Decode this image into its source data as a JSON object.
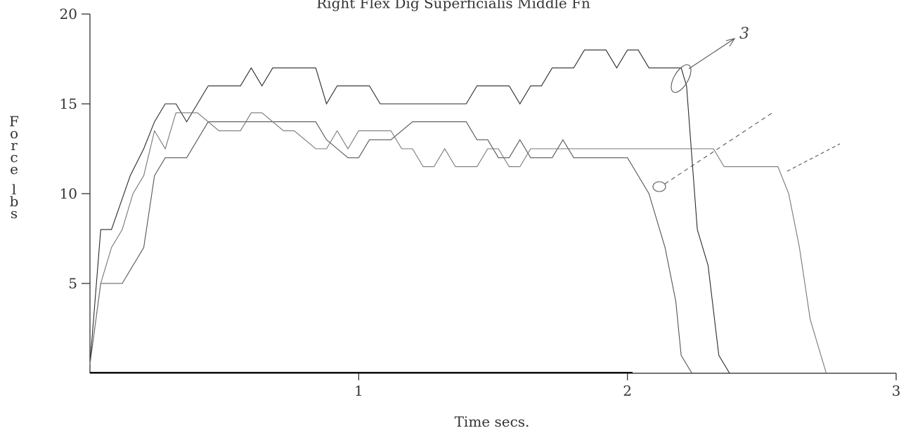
{
  "chart_data": {
    "type": "line",
    "title": "Right    Flex Dig Superficialis Middle Fn",
    "xlabel": "Time  secs.",
    "ylabel": "Force lbs",
    "xlim": [
      0,
      3
    ],
    "ylim": [
      0,
      20
    ],
    "x_ticks": [
      1,
      2,
      3
    ],
    "y_ticks": [
      5,
      10,
      15,
      20
    ],
    "grid": false,
    "legend": "none",
    "series": [
      {
        "color": "#2a2a2a",
        "points": [
          [
            0,
            0.5
          ],
          [
            0.04,
            8
          ],
          [
            0.08,
            8
          ],
          [
            0.15,
            11
          ],
          [
            0.2,
            12.5
          ],
          [
            0.24,
            14
          ],
          [
            0.28,
            15
          ],
          [
            0.32,
            15
          ],
          [
            0.36,
            14
          ],
          [
            0.4,
            15
          ],
          [
            0.44,
            16
          ],
          [
            0.48,
            16
          ],
          [
            0.52,
            16
          ],
          [
            0.56,
            16
          ],
          [
            0.6,
            17
          ],
          [
            0.64,
            16
          ],
          [
            0.68,
            17
          ],
          [
            0.72,
            17
          ],
          [
            0.76,
            17
          ],
          [
            0.8,
            17
          ],
          [
            0.84,
            17
          ],
          [
            0.88,
            15
          ],
          [
            0.92,
            16
          ],
          [
            0.96,
            16
          ],
          [
            1,
            16
          ],
          [
            1.04,
            16
          ],
          [
            1.08,
            15
          ],
          [
            1.12,
            15
          ],
          [
            1.2,
            15
          ],
          [
            1.3,
            15
          ],
          [
            1.4,
            15
          ],
          [
            1.44,
            16
          ],
          [
            1.48,
            16
          ],
          [
            1.52,
            16
          ],
          [
            1.56,
            16
          ],
          [
            1.6,
            15
          ],
          [
            1.64,
            16
          ],
          [
            1.68,
            16
          ],
          [
            1.72,
            17
          ],
          [
            1.76,
            17
          ],
          [
            1.8,
            17
          ],
          [
            1.84,
            18
          ],
          [
            1.88,
            18
          ],
          [
            1.92,
            18
          ],
          [
            1.96,
            17
          ],
          [
            2,
            18
          ],
          [
            2.04,
            18
          ],
          [
            2.08,
            17
          ],
          [
            2.12,
            17
          ],
          [
            2.16,
            17
          ],
          [
            2.2,
            17
          ],
          [
            2.22,
            16
          ],
          [
            2.24,
            12
          ],
          [
            2.26,
            8
          ],
          [
            2.3,
            6
          ],
          [
            2.34,
            1
          ],
          [
            2.38,
            0
          ]
        ]
      },
      {
        "color": "#555555",
        "points": [
          [
            0,
            0.5
          ],
          [
            0.04,
            5
          ],
          [
            0.08,
            5
          ],
          [
            0.12,
            5
          ],
          [
            0.16,
            6
          ],
          [
            0.2,
            7
          ],
          [
            0.24,
            11
          ],
          [
            0.28,
            12
          ],
          [
            0.32,
            12
          ],
          [
            0.36,
            12
          ],
          [
            0.4,
            13
          ],
          [
            0.44,
            14
          ],
          [
            0.48,
            14
          ],
          [
            0.52,
            14
          ],
          [
            0.56,
            14
          ],
          [
            0.6,
            14
          ],
          [
            0.64,
            14
          ],
          [
            0.68,
            14
          ],
          [
            0.72,
            14
          ],
          [
            0.76,
            14
          ],
          [
            0.8,
            14
          ],
          [
            0.84,
            14
          ],
          [
            0.88,
            13
          ],
          [
            0.92,
            12.5
          ],
          [
            0.96,
            12
          ],
          [
            1,
            12
          ],
          [
            1.04,
            13
          ],
          [
            1.08,
            13
          ],
          [
            1.12,
            13
          ],
          [
            1.16,
            13.5
          ],
          [
            1.2,
            14
          ],
          [
            1.24,
            14
          ],
          [
            1.28,
            14
          ],
          [
            1.32,
            14
          ],
          [
            1.36,
            14
          ],
          [
            1.4,
            14
          ],
          [
            1.44,
            13
          ],
          [
            1.48,
            13
          ],
          [
            1.52,
            12
          ],
          [
            1.56,
            12
          ],
          [
            1.6,
            13
          ],
          [
            1.64,
            12
          ],
          [
            1.68,
            12
          ],
          [
            1.72,
            12
          ],
          [
            1.76,
            13
          ],
          [
            1.8,
            12
          ],
          [
            1.84,
            12
          ],
          [
            1.88,
            12
          ],
          [
            1.92,
            12
          ],
          [
            1.96,
            12
          ],
          [
            2,
            12
          ],
          [
            2.04,
            11
          ],
          [
            2.08,
            10
          ],
          [
            2.1,
            9
          ],
          [
            2.14,
            7
          ],
          [
            2.18,
            4
          ],
          [
            2.2,
            1
          ],
          [
            2.24,
            0
          ]
        ]
      },
      {
        "color": "#777777",
        "points": [
          [
            0,
            0.5
          ],
          [
            0.04,
            5
          ],
          [
            0.08,
            7
          ],
          [
            0.12,
            8
          ],
          [
            0.16,
            10
          ],
          [
            0.2,
            11
          ],
          [
            0.24,
            13.5
          ],
          [
            0.28,
            12.5
          ],
          [
            0.32,
            14.5
          ],
          [
            0.36,
            14.5
          ],
          [
            0.4,
            14.5
          ],
          [
            0.44,
            14
          ],
          [
            0.48,
            13.5
          ],
          [
            0.52,
            13.5
          ],
          [
            0.56,
            13.5
          ],
          [
            0.6,
            14.5
          ],
          [
            0.64,
            14.5
          ],
          [
            0.68,
            14
          ],
          [
            0.72,
            13.5
          ],
          [
            0.76,
            13.5
          ],
          [
            0.8,
            13
          ],
          [
            0.84,
            12.5
          ],
          [
            0.88,
            12.5
          ],
          [
            0.92,
            13.5
          ],
          [
            0.96,
            12.5
          ],
          [
            1,
            13.5
          ],
          [
            1.04,
            13.5
          ],
          [
            1.08,
            13.5
          ],
          [
            1.12,
            13.5
          ],
          [
            1.16,
            12.5
          ],
          [
            1.2,
            12.5
          ],
          [
            1.24,
            11.5
          ],
          [
            1.28,
            11.5
          ],
          [
            1.32,
            12.5
          ],
          [
            1.36,
            11.5
          ],
          [
            1.4,
            11.5
          ],
          [
            1.44,
            11.5
          ],
          [
            1.48,
            12.5
          ],
          [
            1.52,
            12.5
          ],
          [
            1.56,
            11.5
          ],
          [
            1.6,
            11.5
          ],
          [
            1.64,
            12.5
          ],
          [
            1.68,
            12.5
          ],
          [
            1.72,
            12.5
          ],
          [
            1.76,
            12.5
          ],
          [
            1.8,
            12.5
          ],
          [
            1.84,
            12.5
          ],
          [
            1.88,
            12.5
          ],
          [
            1.92,
            12.5
          ],
          [
            1.96,
            12.5
          ],
          [
            2,
            12.5
          ],
          [
            2.04,
            12.5
          ],
          [
            2.08,
            12.5
          ],
          [
            2.12,
            12.5
          ],
          [
            2.16,
            12.5
          ],
          [
            2.2,
            12.5
          ],
          [
            2.24,
            12.5
          ],
          [
            2.28,
            12.5
          ],
          [
            2.32,
            12.5
          ],
          [
            2.36,
            11.5
          ],
          [
            2.4,
            11.5
          ],
          [
            2.44,
            11.5
          ],
          [
            2.48,
            11.5
          ],
          [
            2.52,
            11.5
          ],
          [
            2.56,
            11.5
          ],
          [
            2.6,
            10
          ],
          [
            2.64,
            7
          ],
          [
            2.68,
            3
          ],
          [
            2.72,
            1
          ],
          [
            2.74,
            0
          ]
        ]
      }
    ],
    "annotations": [
      "3"
    ]
  }
}
